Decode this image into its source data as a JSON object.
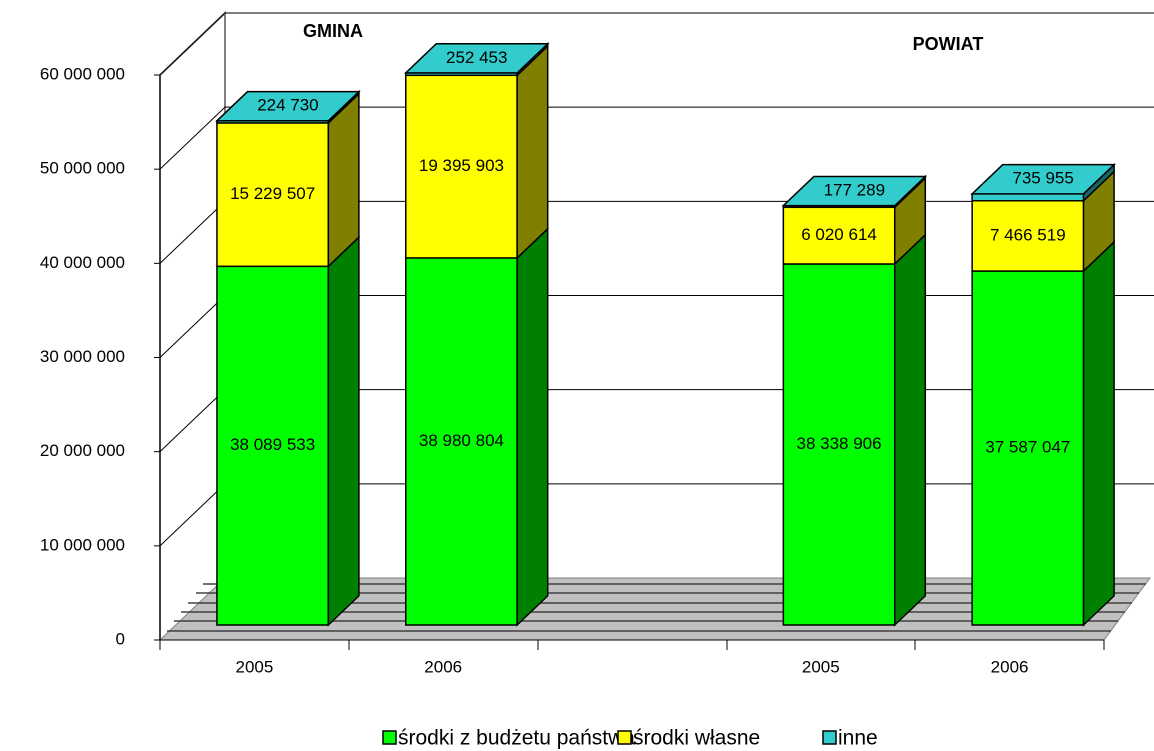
{
  "chart_data": {
    "type": "bar3d_stacked",
    "annotations": [
      "GMINA",
      "POWIAT"
    ],
    "categories": [
      "2005",
      "2006",
      null,
      "2005",
      "2006"
    ],
    "series": [
      {
        "name": "środki z budżetu państwa",
        "color": "#00ff00",
        "values": [
          38089533,
          38980804,
          null,
          38338906,
          37587047
        ],
        "value_labels": [
          "38 089 533",
          "38 980 804",
          null,
          "38 338 906",
          "37 587 047"
        ]
      },
      {
        "name": "środki własne",
        "color": "#ffff00",
        "values": [
          15229507,
          19395903,
          null,
          6020614,
          7466519
        ],
        "value_labels": [
          "15 229 507",
          "19 395 903",
          null,
          "6 020 614",
          "7 466 519"
        ]
      },
      {
        "name": "inne",
        "color": "#33cccc",
        "values": [
          224730,
          252453,
          null,
          177289,
          735955
        ],
        "value_labels": [
          "224 730",
          "252 453",
          null,
          "177 289",
          "735 955"
        ]
      }
    ],
    "ylim": [
      0,
      60000000
    ],
    "yticks": [
      0,
      {
        "value": 10000000,
        "label": "10 000 000"
      },
      {
        "value": 20000000,
        "label": "20 000 000"
      },
      {
        "value": 30000000,
        "label": "30 000 000"
      },
      {
        "value": 40000000,
        "label": "40 000 000"
      },
      {
        "value": 50000000,
        "label": "50 000 000"
      },
      {
        "value": 60000000,
        "label": "60 000 000"
      }
    ],
    "grid": true,
    "legend": "bottom"
  }
}
